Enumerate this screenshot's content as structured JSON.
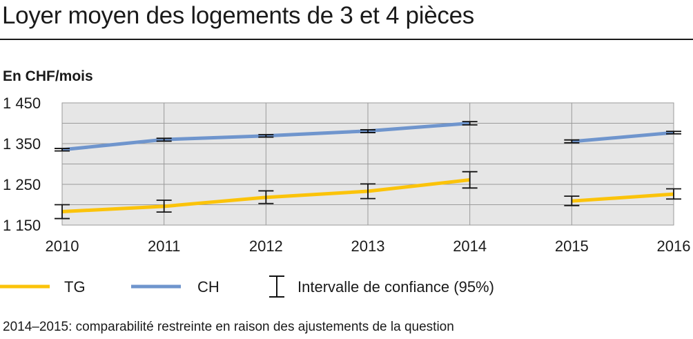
{
  "chart_data": {
    "type": "line",
    "title": "Loyer moyen des logements de 3 et 4 pièces",
    "ylabel": "En CHF/mois",
    "xlabel": "",
    "categories": [
      "2010",
      "2011",
      "2012",
      "2013",
      "2014",
      "2015",
      "2016"
    ],
    "ylim": [
      1150,
      1450
    ],
    "yticks": [
      1150,
      1250,
      1350,
      1450
    ],
    "ytick_labels": [
      "1 150",
      "1 250",
      "1 350",
      "1 450"
    ],
    "grid": true,
    "legend_position": "bottom",
    "series": [
      {
        "name": "TG",
        "color": "#fbc30a",
        "values": [
          1183,
          1196,
          1218,
          1233,
          1261,
          1209,
          1226
        ],
        "ci": [
          [
            1166,
            1200
          ],
          [
            1182,
            1211
          ],
          [
            1203,
            1234
          ],
          [
            1215,
            1251
          ],
          [
            1241,
            1281
          ],
          [
            1198,
            1221
          ],
          [
            1214,
            1239
          ]
        ]
      },
      {
        "name": "CH",
        "color": "#6f95cd",
        "values": [
          1335,
          1360,
          1369,
          1381,
          1400,
          1355,
          1377
        ],
        "ci": [
          [
            1332,
            1338
          ],
          [
            1356,
            1363
          ],
          [
            1366,
            1372
          ],
          [
            1377,
            1384
          ],
          [
            1396,
            1404
          ],
          [
            1352,
            1359
          ],
          [
            1374,
            1380
          ]
        ]
      }
    ],
    "segments": [
      [
        0,
        4
      ],
      [
        5,
        6
      ]
    ],
    "ci_legend_label": "Intervalle de confiance (95%)"
  },
  "note": "2014–2015: comparabilité restreinte en raison des ajustements de la question"
}
